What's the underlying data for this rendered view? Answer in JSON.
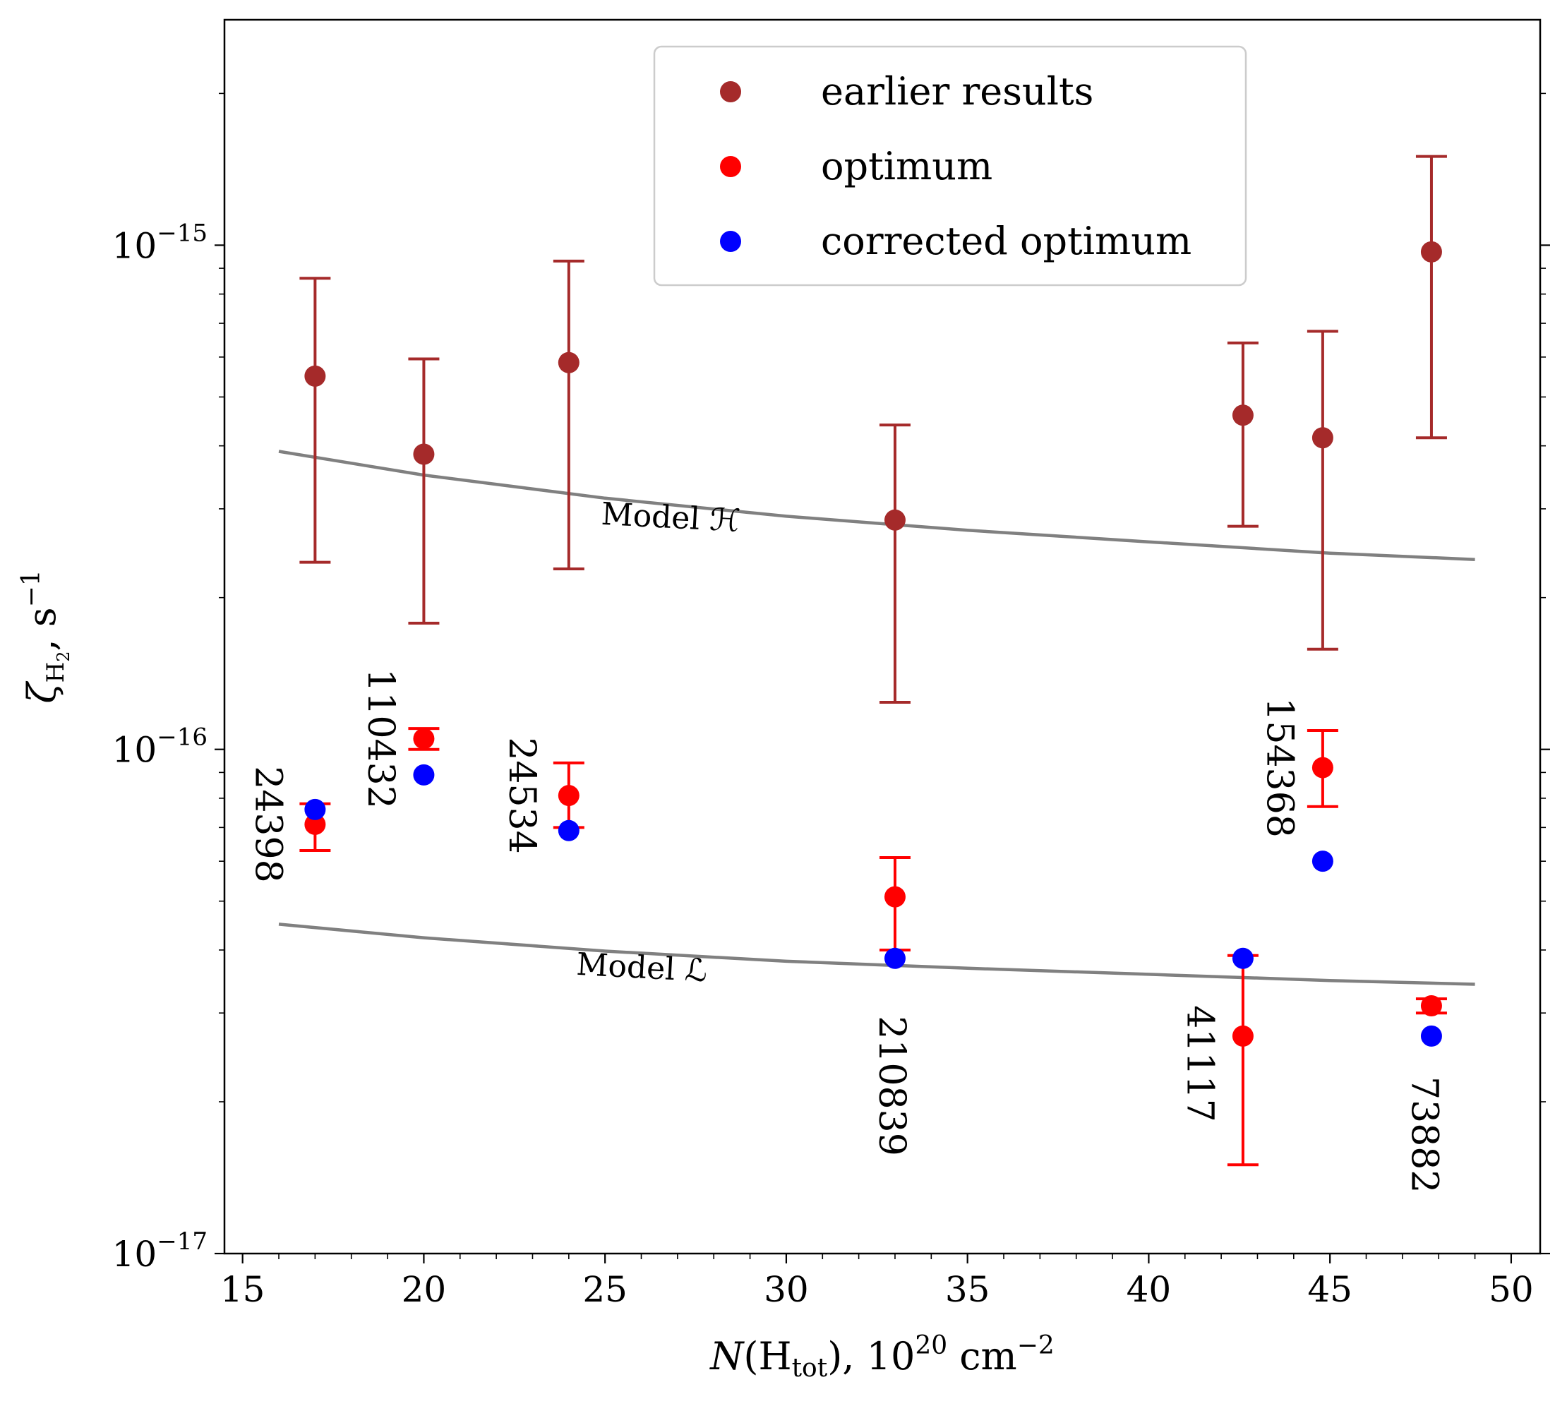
{
  "chart_data": {
    "type": "scatter",
    "title": "",
    "xlabel": "N(H_tot), 10^20 cm^-2",
    "ylabel": "ζ_H2, s^-1",
    "xlim": [
      14.5,
      50.8
    ],
    "ylim": [
      1e-17,
      2.8e-15
    ],
    "yscale": "log",
    "x_ticks": [
      15,
      20,
      25,
      30,
      35,
      40,
      45,
      50
    ],
    "x_tick_labels": [
      "15",
      "20",
      "25",
      "30",
      "35",
      "40",
      "45",
      "50"
    ],
    "y_ticks": [
      1e-17,
      1e-16,
      1e-15
    ],
    "y_tick_labels": [
      "10",
      "10",
      "10"
    ],
    "y_tick_exponents": [
      "−17",
      "−16",
      "−15"
    ],
    "legend_position": "top-center",
    "series": [
      {
        "name": "earlier results",
        "color": "#a52a2a",
        "points": [
          {
            "x": 17.0,
            "y": 5.5e-16,
            "lo": 2.35e-16,
            "hi": 8.6e-16
          },
          {
            "x": 20.0,
            "y": 3.85e-16,
            "lo": 1.78e-16,
            "hi": 5.95e-16
          },
          {
            "x": 24.0,
            "y": 5.85e-16,
            "lo": 2.28e-16,
            "hi": 9.3e-16
          },
          {
            "x": 33.0,
            "y": 2.85e-16,
            "lo": 1.24e-16,
            "hi": 4.4e-16
          },
          {
            "x": 42.6,
            "y": 4.6e-16,
            "lo": 2.77e-16,
            "hi": 6.4e-16
          },
          {
            "x": 44.8,
            "y": 4.15e-16,
            "lo": 1.58e-16,
            "hi": 6.75e-16
          },
          {
            "x": 47.8,
            "y": 9.7e-16,
            "lo": 4.15e-16,
            "hi": 1.5e-15
          }
        ]
      },
      {
        "name": "optimum",
        "color": "#ff0000",
        "points": [
          {
            "x": 17.0,
            "y": 7.1e-17,
            "lo": 6.3e-17,
            "hi": 7.8e-17
          },
          {
            "x": 20.0,
            "y": 1.05e-16,
            "lo": 1e-16,
            "hi": 1.1e-16
          },
          {
            "x": 24.0,
            "y": 8.1e-17,
            "lo": 7e-17,
            "hi": 9.4e-17
          },
          {
            "x": 33.0,
            "y": 5.1e-17,
            "lo": 4e-17,
            "hi": 6.1e-17
          },
          {
            "x": 42.6,
            "y": 2.7e-17,
            "lo": 1.5e-17,
            "hi": 3.9e-17
          },
          {
            "x": 44.8,
            "y": 9.2e-17,
            "lo": 7.7e-17,
            "hi": 1.09e-16
          },
          {
            "x": 47.8,
            "y": 3.1e-17,
            "lo": 3e-17,
            "hi": 3.2e-17
          }
        ]
      },
      {
        "name": "corrected optimum",
        "color": "#0000ff",
        "points": [
          {
            "x": 17.0,
            "y": 7.6e-17
          },
          {
            "x": 20.0,
            "y": 8.9e-17
          },
          {
            "x": 24.0,
            "y": 6.9e-17
          },
          {
            "x": 33.0,
            "y": 3.85e-17
          },
          {
            "x": 42.6,
            "y": 3.85e-17
          },
          {
            "x": 44.8,
            "y": 6e-17
          },
          {
            "x": 47.8,
            "y": 2.7e-17
          }
        ]
      }
    ],
    "model_curves": [
      {
        "name": "Model H",
        "label": "Model ℋ",
        "color": "#808080",
        "x": [
          16,
          20,
          25,
          30,
          35,
          40,
          45,
          49
        ],
        "y": [
          3.9e-16,
          3.5e-16,
          3.15e-16,
          2.9e-16,
          2.72e-16,
          2.58e-16,
          2.45e-16,
          2.38e-16
        ]
      },
      {
        "name": "Model L",
        "label": "Model ℒ",
        "color": "#808080",
        "x": [
          16,
          20,
          25,
          30,
          35,
          40,
          45,
          49
        ],
        "y": [
          4.5e-17,
          4.23e-17,
          3.98e-17,
          3.8e-17,
          3.68e-17,
          3.58e-17,
          3.48e-17,
          3.42e-17
        ]
      }
    ],
    "annotations": [
      {
        "text": "24398",
        "x": 15.7,
        "y": 7.1e-17
      },
      {
        "text": "110432",
        "x": 18.8,
        "y": 1.05e-16
      },
      {
        "text": "24534",
        "x": 22.7,
        "y": 8.1e-17
      },
      {
        "text": "210839",
        "x": 32.9,
        "y": 2.15e-17
      },
      {
        "text": "41117",
        "x": 41.4,
        "y": 2.38e-17
      },
      {
        "text": "154368",
        "x": 43.6,
        "y": 9.2e-17
      },
      {
        "text": "73882",
        "x": 47.6,
        "y": 1.72e-17
      }
    ]
  }
}
